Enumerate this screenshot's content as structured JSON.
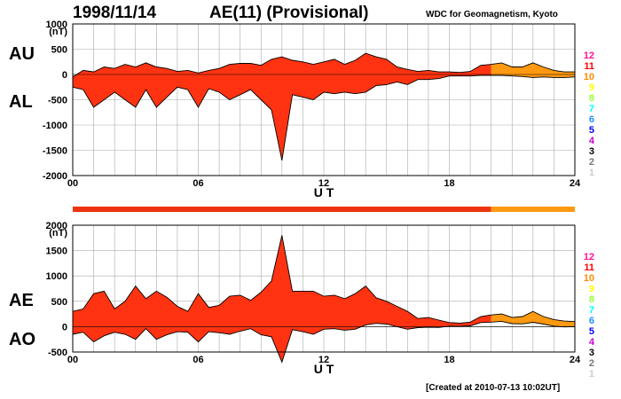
{
  "header": {
    "date": "1998/11/14",
    "title": "AE(11) (Provisional)",
    "source": "WDC for Geomagnetism, Kyoto"
  },
  "footer": {
    "created": "[Created at 2010-07-13 10:02UT]"
  },
  "panels": {
    "top_labels": [
      "AU",
      "AL"
    ],
    "bottom_labels": [
      "AE",
      "AO"
    ]
  },
  "colors": {
    "fill_main": "#ff3311",
    "fill_late": "#ff9911",
    "strip_main": "#ee3311",
    "strip_late": "#ff9911"
  },
  "station_scale": {
    "labels": [
      "12",
      "11",
      "10",
      "9",
      "8",
      "7",
      "6",
      "5",
      "4",
      "3",
      "2",
      "1"
    ],
    "colors": [
      "#ff1493",
      "#ff0000",
      "#ff8c00",
      "#ffff00",
      "#99ff33",
      "#00ffff",
      "#1e90ff",
      "#0000ff",
      "#cc00cc",
      "#000000",
      "#777777",
      "#cccccc"
    ]
  },
  "chart_data": [
    {
      "type": "area",
      "series": [
        {
          "name": "AU",
          "x": [
            0,
            0.5,
            1,
            1.5,
            2,
            2.5,
            3,
            3.5,
            4,
            4.5,
            5,
            5.5,
            6,
            6.5,
            7,
            7.5,
            8,
            8.5,
            9,
            9.5,
            10,
            10.5,
            11,
            11.5,
            12,
            12.5,
            13,
            13.5,
            14,
            14.5,
            15,
            15.5,
            16,
            16.5,
            17,
            17.5,
            18,
            18.5,
            19,
            19.5,
            20,
            20.5,
            21,
            21.5,
            22,
            22.5,
            23,
            23.5,
            24
          ],
          "values": [
            -50,
            80,
            50,
            150,
            120,
            200,
            150,
            230,
            150,
            120,
            60,
            80,
            30,
            80,
            120,
            200,
            220,
            220,
            180,
            300,
            350,
            280,
            250,
            200,
            250,
            300,
            200,
            280,
            420,
            350,
            300,
            150,
            100,
            60,
            80,
            50,
            50,
            40,
            60,
            180,
            200,
            230,
            150,
            150,
            230,
            150,
            80,
            50,
            50
          ]
        },
        {
          "name": "AL",
          "x": [
            0,
            0.5,
            1,
            1.5,
            2,
            2.5,
            3,
            3.5,
            4,
            4.5,
            5,
            5.5,
            6,
            6.5,
            7,
            7.5,
            8,
            8.5,
            9,
            9.5,
            10,
            10.5,
            11,
            11.5,
            12,
            12.5,
            13,
            13.5,
            14,
            14.5,
            15,
            15.5,
            16,
            16.5,
            17,
            17.5,
            18,
            18.5,
            19,
            19.5,
            20,
            20.5,
            21,
            21.5,
            22,
            22.5,
            23,
            23.5,
            24
          ],
          "values": [
            -250,
            -300,
            -650,
            -500,
            -350,
            -500,
            -650,
            -300,
            -650,
            -450,
            -250,
            -300,
            -650,
            -280,
            -350,
            -500,
            -400,
            -300,
            -500,
            -700,
            -1700,
            -400,
            -450,
            -500,
            -350,
            -380,
            -350,
            -380,
            -350,
            -220,
            -200,
            -150,
            -200,
            -100,
            -100,
            -80,
            -30,
            -30,
            -30,
            -20,
            -20,
            -20,
            -30,
            -40,
            -60,
            -50,
            -60,
            -60,
            -50
          ]
        }
      ],
      "xlabel": "U T",
      "x_ticks": [
        "00",
        "06",
        "12",
        "18",
        "24"
      ],
      "ylabel": "(nT)",
      "y_ticks": [
        "1000",
        "500",
        "0",
        "-500",
        "-1000",
        "-1500",
        "-2000"
      ],
      "xlim": [
        0,
        24
      ],
      "ylim": [
        -2000,
        1000
      ],
      "grid": true
    },
    {
      "type": "area",
      "series": [
        {
          "name": "AE",
          "x": [
            0,
            0.5,
            1,
            1.5,
            2,
            2.5,
            3,
            3.5,
            4,
            4.5,
            5,
            5.5,
            6,
            6.5,
            7,
            7.5,
            8,
            8.5,
            9,
            9.5,
            10,
            10.5,
            11,
            11.5,
            12,
            12.5,
            13,
            13.5,
            14,
            14.5,
            15,
            15.5,
            16,
            16.5,
            17,
            17.5,
            18,
            18.5,
            19,
            19.5,
            20,
            20.5,
            21,
            21.5,
            22,
            22.5,
            23,
            23.5,
            24
          ],
          "values": [
            300,
            350,
            650,
            700,
            350,
            500,
            800,
            550,
            700,
            580,
            400,
            300,
            650,
            380,
            420,
            600,
            620,
            520,
            680,
            900,
            1800,
            700,
            700,
            700,
            600,
            620,
            550,
            650,
            800,
            570,
            500,
            400,
            300,
            160,
            180,
            130,
            80,
            70,
            90,
            200,
            230,
            250,
            180,
            200,
            300,
            200,
            140,
            110,
            100
          ]
        },
        {
          "name": "AO",
          "x": [
            0,
            0.5,
            1,
            1.5,
            2,
            2.5,
            3,
            3.5,
            4,
            4.5,
            5,
            5.5,
            6,
            6.5,
            7,
            7.5,
            8,
            8.5,
            9,
            9.5,
            10,
            10.5,
            11,
            11.5,
            12,
            12.5,
            13,
            13.5,
            14,
            14.5,
            15,
            15.5,
            16,
            16.5,
            17,
            17.5,
            18,
            18.5,
            19,
            19.5,
            20,
            20.5,
            21,
            21.5,
            22,
            22.5,
            23,
            23.5,
            24
          ],
          "values": [
            -150,
            -110,
            -300,
            -180,
            -110,
            -150,
            -250,
            -40,
            -250,
            -160,
            -100,
            -110,
            -300,
            -100,
            -120,
            -150,
            -90,
            -40,
            -160,
            -200,
            -700,
            -60,
            -100,
            -150,
            -50,
            -40,
            -70,
            -50,
            35,
            65,
            50,
            0,
            -50,
            -20,
            -10,
            -15,
            10,
            5,
            15,
            80,
            90,
            105,
            60,
            55,
            85,
            50,
            10,
            -5,
            0
          ]
        }
      ],
      "xlabel": "U T",
      "x_ticks": [
        "00",
        "06",
        "12",
        "18",
        "24"
      ],
      "ylabel": "(nT)",
      "y_ticks": [
        "2000",
        "1500",
        "1000",
        "500",
        "0",
        "-500"
      ],
      "xlim": [
        0,
        24
      ],
      "ylim": [
        -500,
        2000
      ],
      "grid": true
    }
  ]
}
